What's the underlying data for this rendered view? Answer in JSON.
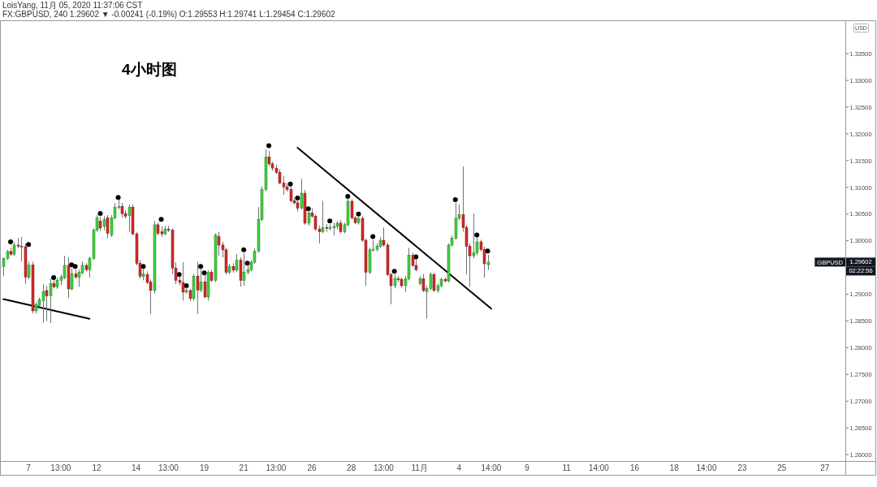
{
  "chart_data": {
    "type": "candlestick",
    "title": "4小时图",
    "ylabel": "USD",
    "annotations": [
      "LoisYang, 11月 05, 2020 11:37:06 CST",
      "FX:GBPUSD, 240 1.29602 ▼ -0.00241 (-0.19%) O:1.29553 H:1.29741 L:1.29454 C:1.29602",
      {
        "text": "1.29602",
        "y": 1.29602
      },
      "02:22:56",
      "GBPUSD"
    ],
    "categories": [
      null,
      null,
      null,
      null,
      null,
      null,
      null,
      "7",
      null,
      null,
      null,
      null,
      null,
      null,
      null,
      null,
      "13:00",
      null,
      null,
      null,
      null,
      null,
      null,
      null,
      null,
      null,
      "12",
      null,
      null,
      null,
      null,
      null,
      null,
      null,
      null,
      null,
      null,
      "14",
      null,
      null,
      null,
      null,
      null,
      null,
      null,
      null,
      "13:00",
      null,
      null,
      null,
      null,
      null,
      null,
      null,
      null,
      null,
      "19",
      null,
      null,
      null,
      null,
      null,
      null,
      null,
      null,
      null,
      null,
      "21",
      null,
      null,
      null,
      null,
      null,
      null,
      null,
      null,
      "13:00",
      null,
      null,
      null,
      null,
      null,
      null,
      null,
      null,
      null,
      "26",
      null,
      null,
      null,
      null,
      null,
      null,
      null,
      null,
      null,
      null,
      "28",
      null,
      null,
      null,
      null,
      null,
      null,
      null,
      null,
      "13:00",
      null,
      null,
      null,
      null,
      null,
      null,
      null,
      null,
      null,
      "11月",
      null,
      null,
      null,
      null,
      null,
      null,
      null,
      null,
      null,
      null,
      "4",
      null,
      null,
      null,
      null,
      null,
      null,
      null,
      null,
      "14:00",
      null,
      null,
      null,
      null,
      null,
      null,
      null,
      null,
      null,
      "9",
      null,
      null,
      null,
      null,
      null,
      null,
      null,
      null,
      null,
      null,
      "11",
      null,
      null,
      null,
      null,
      null,
      null,
      null,
      null,
      "14:00",
      null,
      null,
      null,
      null,
      null,
      null,
      null,
      null,
      null,
      "16",
      null,
      null,
      null,
      null,
      null,
      null,
      null,
      null,
      null,
      null,
      "18",
      null,
      null,
      null,
      null,
      null,
      null,
      null,
      null,
      "14:00",
      null,
      null,
      null,
      null,
      null,
      null,
      null,
      null,
      null,
      "23",
      null,
      null,
      null,
      null,
      null,
      null,
      null,
      null,
      null,
      null,
      "25",
      null,
      null,
      null,
      null,
      null,
      null,
      null,
      null,
      null,
      null,
      null,
      "27",
      null,
      null,
      null,
      null,
      null
    ],
    "ohlc": [
      [
        1.2952,
        1.2969,
        1.2934,
        1.2967
      ],
      [
        1.2967,
        1.2983,
        1.2964,
        1.298
      ],
      [
        1.298,
        1.2987,
        1.2972,
        1.2975
      ],
      [
        1.2975,
        1.2998,
        1.2972,
        1.2992
      ],
      [
        1.2992,
        1.3005,
        1.2986,
        1.299
      ],
      [
        1.299,
        1.3007,
        1.2961,
        1.2989
      ],
      [
        1.2989,
        1.2995,
        1.2919,
        1.2932
      ],
      [
        1.2932,
        1.2961,
        1.2928,
        1.2955
      ],
      [
        1.2955,
        1.2961,
        1.2864,
        1.2869
      ],
      [
        1.2869,
        1.2885,
        1.2864,
        1.2881
      ],
      [
        1.2879,
        1.2894,
        1.2876,
        1.289
      ],
      [
        1.2888,
        1.2919,
        1.2847,
        1.2905
      ],
      [
        1.2907,
        1.2916,
        1.285,
        1.2897
      ],
      [
        1.2897,
        1.2929,
        1.2846,
        1.292
      ],
      [
        1.292,
        1.2926,
        1.2911,
        1.2914
      ],
      [
        1.2914,
        1.2931,
        1.291,
        1.2926
      ],
      [
        1.2926,
        1.2937,
        1.2917,
        1.2932
      ],
      [
        1.2931,
        1.2972,
        1.2928,
        1.2954
      ],
      [
        1.2954,
        1.2969,
        1.2893,
        1.291
      ],
      [
        1.291,
        1.2949,
        1.2907,
        1.2938
      ],
      [
        1.2938,
        1.2946,
        1.2929,
        1.2932
      ],
      [
        1.2932,
        1.2946,
        1.2914,
        1.2941
      ],
      [
        1.294,
        1.2961,
        1.2937,
        1.2954
      ],
      [
        1.2954,
        1.2958,
        1.2943,
        1.2946
      ],
      [
        1.2946,
        1.297,
        1.2931,
        1.2967
      ],
      [
        1.2967,
        1.3023,
        1.2964,
        1.302
      ],
      [
        1.302,
        1.3048,
        1.3017,
        1.3043
      ],
      [
        1.3037,
        1.3045,
        1.3019,
        1.3024
      ],
      [
        1.3027,
        1.3046,
        1.302,
        1.304
      ],
      [
        1.3043,
        1.3048,
        1.3005,
        1.3014
      ],
      [
        1.3011,
        1.3048,
        1.3007,
        1.3043
      ],
      [
        1.3043,
        1.3071,
        1.304,
        1.3063
      ],
      [
        1.3063,
        1.3077,
        1.3059,
        1.3064
      ],
      [
        1.3064,
        1.3071,
        1.3043,
        1.3051
      ],
      [
        1.3051,
        1.3057,
        1.3042,
        1.3046
      ],
      [
        1.3047,
        1.3068,
        1.3017,
        1.3063
      ],
      [
        1.3063,
        1.3068,
        1.301,
        1.3013
      ],
      [
        1.3013,
        1.3016,
        1.2954,
        1.2958
      ],
      [
        1.2958,
        1.2964,
        1.2929,
        1.2934
      ],
      [
        1.2933,
        1.2948,
        1.2926,
        1.2938
      ],
      [
        1.2937,
        1.2943,
        1.2919,
        1.2922
      ],
      [
        1.2923,
        1.2928,
        1.2863,
        1.2907
      ],
      [
        1.2907,
        1.3037,
        1.2901,
        1.303
      ],
      [
        1.303,
        1.3034,
        1.301,
        1.3014
      ],
      [
        1.3017,
        1.3027,
        1.3007,
        1.3013
      ],
      [
        1.3013,
        1.3028,
        1.301,
        1.3022
      ],
      [
        1.3022,
        1.3028,
        1.3016,
        1.302
      ],
      [
        1.302,
        1.3023,
        1.2938,
        1.2949
      ],
      [
        1.2949,
        1.296,
        1.2919,
        1.2926
      ],
      [
        1.2926,
        1.2934,
        1.2917,
        1.2922
      ],
      [
        1.2922,
        1.296,
        1.2888,
        1.2904
      ],
      [
        1.2904,
        1.2913,
        1.2901,
        1.2907
      ],
      [
        1.2907,
        1.291,
        1.2887,
        1.2892
      ],
      [
        1.2892,
        1.2938,
        1.2888,
        1.2934
      ],
      [
        1.2934,
        1.2961,
        1.2863,
        1.2908
      ],
      [
        1.2908,
        1.2949,
        1.2904,
        1.2923
      ],
      [
        1.2923,
        1.2937,
        1.2892,
        1.2895
      ],
      [
        1.2895,
        1.2945,
        1.2888,
        1.2941
      ],
      [
        1.2941,
        1.2946,
        1.2923,
        1.2926
      ],
      [
        1.2926,
        1.3014,
        1.2923,
        1.3011
      ],
      [
        1.3008,
        1.3017,
        1.2972,
        1.2992
      ],
      [
        1.2992,
        1.2998,
        1.2969,
        1.2983
      ],
      [
        1.2983,
        1.2987,
        1.2937,
        1.2941
      ],
      [
        1.2941,
        1.2957,
        1.2937,
        1.2952
      ],
      [
        1.2952,
        1.2958,
        1.294,
        1.2945
      ],
      [
        1.2945,
        1.2975,
        1.2941,
        1.2964
      ],
      [
        1.2964,
        1.2969,
        1.2914,
        1.2926
      ],
      [
        1.2926,
        1.2977,
        1.2916,
        1.2941
      ],
      [
        1.2941,
        1.2955,
        1.2937,
        1.2946
      ],
      [
        1.2946,
        1.2964,
        1.2943,
        1.296
      ],
      [
        1.296,
        1.2986,
        1.2957,
        1.2981
      ],
      [
        1.2981,
        1.3063,
        1.2978,
        1.304
      ],
      [
        1.304,
        1.3102,
        1.3037,
        1.3096
      ],
      [
        1.3096,
        1.3171,
        1.3093,
        1.3157
      ],
      [
        1.3157,
        1.3168,
        1.3139,
        1.3144
      ],
      [
        1.3144,
        1.3148,
        1.3131,
        1.3136
      ],
      [
        1.3136,
        1.3142,
        1.3125,
        1.3128
      ],
      [
        1.3128,
        1.3134,
        1.3106,
        1.3108
      ],
      [
        1.3108,
        1.3121,
        1.3086,
        1.3101
      ],
      [
        1.3101,
        1.3108,
        1.3092,
        1.3096
      ],
      [
        1.3096,
        1.3101,
        1.3072,
        1.3075
      ],
      [
        1.3075,
        1.3081,
        1.3068,
        1.3071
      ],
      [
        1.3071,
        1.3077,
        1.3055,
        1.3061
      ],
      [
        1.3061,
        1.3116,
        1.3059,
        1.3089
      ],
      [
        1.3089,
        1.3095,
        1.303,
        1.3033
      ],
      [
        1.3033,
        1.3057,
        1.3028,
        1.3052
      ],
      [
        1.3052,
        1.3061,
        1.3043,
        1.3046
      ],
      [
        1.3046,
        1.3049,
        1.3019,
        1.3022
      ],
      [
        1.3022,
        1.3028,
        1.2995,
        1.3017
      ],
      [
        1.3017,
        1.3075,
        1.3014,
        1.3025
      ],
      [
        1.3025,
        1.3031,
        1.3017,
        1.3024
      ],
      [
        1.3024,
        1.3031,
        1.3019,
        1.3025
      ],
      [
        1.3024,
        1.3034,
        1.301,
        1.3027
      ],
      [
        1.3027,
        1.3037,
        1.3022,
        1.3033
      ],
      [
        1.3033,
        1.3039,
        1.3014,
        1.3017
      ],
      [
        1.3017,
        1.3034,
        1.3014,
        1.303
      ],
      [
        1.303,
        1.3078,
        1.3027,
        1.3074
      ],
      [
        1.3074,
        1.3078,
        1.304,
        1.3043
      ],
      [
        1.3043,
        1.3046,
        1.3031,
        1.3034
      ],
      [
        1.3034,
        1.3046,
        1.303,
        1.3042
      ],
      [
        1.3042,
        1.3046,
        1.2998,
        1.3001
      ],
      [
        1.3001,
        1.3004,
        1.2916,
        1.2941
      ],
      [
        1.2941,
        1.2987,
        1.2938,
        1.2983
      ],
      [
        1.2983,
        1.3002,
        1.298,
        1.2984
      ],
      [
        1.2984,
        1.2995,
        1.298,
        1.299
      ],
      [
        1.299,
        1.3007,
        1.2987,
        1.3001
      ],
      [
        1.3001,
        1.3025,
        1.2989,
        1.2992
      ],
      [
        1.2992,
        1.2996,
        1.2934,
        1.2937
      ],
      [
        1.2937,
        1.294,
        1.2881,
        1.2916
      ],
      [
        1.2916,
        1.2937,
        1.2911,
        1.2929
      ],
      [
        1.2929,
        1.2934,
        1.2923,
        1.2928
      ],
      [
        1.2928,
        1.2931,
        1.2913,
        1.2916
      ],
      [
        1.2916,
        1.2934,
        1.2904,
        1.2929
      ],
      [
        1.2929,
        1.2987,
        1.2926,
        1.2973
      ],
      [
        1.2973,
        1.2978,
        1.2951,
        1.2954
      ],
      [
        1.2954,
        1.2966,
        1.2943,
        1.2946
      ],
      [
        1.292,
        1.2934,
        1.2917,
        1.2929
      ],
      [
        1.2929,
        1.2938,
        1.2904,
        1.2907
      ],
      [
        1.2905,
        1.2916,
        1.2855,
        1.2911
      ],
      [
        1.2911,
        1.2941,
        1.2908,
        1.2937
      ],
      [
        1.2937,
        1.294,
        1.2904,
        1.2907
      ],
      [
        1.2907,
        1.292,
        1.2902,
        1.2916
      ],
      [
        1.2916,
        1.2931,
        1.2913,
        1.2928
      ],
      [
        1.2928,
        1.2931,
        1.2922,
        1.2925
      ],
      [
        1.2925,
        1.2995,
        1.2922,
        1.2992
      ],
      [
        1.2992,
        1.301,
        1.2989,
        1.3005
      ],
      [
        1.3005,
        1.3071,
        1.3002,
        1.3042
      ],
      [
        1.3042,
        1.3068,
        1.3039,
        1.3049
      ],
      [
        1.3049,
        1.3139,
        1.3017,
        1.3025
      ],
      [
        1.3025,
        1.303,
        1.2937,
        1.299
      ],
      [
        1.299,
        1.2995,
        1.2914,
        1.2972
      ],
      [
        1.2972,
        1.3051,
        1.2967,
        1.2978
      ],
      [
        1.2978,
        1.3005,
        1.2973,
        1.2998
      ],
      [
        1.2998,
        1.3002,
        1.298,
        1.2984
      ],
      [
        1.2984,
        1.2989,
        1.2931,
        1.2957
      ],
      [
        1.29553,
        1.29741,
        1.29454,
        1.29602
      ],
      null,
      null,
      null,
      null,
      null,
      null,
      null,
      null,
      null,
      null,
      null,
      null,
      null,
      null,
      null,
      null,
      null,
      null,
      null,
      null,
      null,
      null,
      null,
      null,
      null,
      null,
      null,
      null,
      null,
      null,
      null,
      null,
      null,
      null,
      null,
      null,
      null,
      null,
      null,
      null,
      null,
      null,
      null,
      null,
      null,
      null,
      null,
      null,
      null,
      null,
      null,
      null,
      null,
      null,
      null,
      null,
      null,
      null,
      null,
      null,
      null,
      null,
      null,
      null,
      null,
      null,
      null,
      null,
      null,
      null,
      null,
      null,
      null,
      null,
      null,
      null,
      null,
      null,
      null,
      null,
      null,
      null,
      null,
      null,
      null,
      null,
      null,
      null,
      null,
      null,
      null,
      null,
      null,
      null,
      null,
      null,
      null,
      null,
      null
    ],
    "series": [
      {
        "type": "scatter",
        "color": "#000000",
        "marker": "circle",
        "values": [
          null,
          null,
          1.2998,
          null,
          null,
          null,
          null,
          1.2993,
          null,
          null,
          null,
          null,
          null,
          null,
          1.2931,
          null,
          null,
          null,
          null,
          1.2955,
          1.2952,
          null,
          null,
          null,
          null,
          null,
          null,
          1.3051,
          null,
          null,
          null,
          null,
          1.3081,
          null,
          null,
          null,
          null,
          null,
          null,
          1.2952,
          null,
          null,
          null,
          null,
          1.304,
          null,
          null,
          null,
          null,
          1.2937,
          null,
          1.2916,
          null,
          null,
          null,
          1.2952,
          1.294,
          null,
          null,
          null,
          null,
          null,
          null,
          null,
          null,
          null,
          null,
          1.2983,
          1.2958,
          null,
          null,
          null,
          null,
          null,
          1.3178,
          null,
          null,
          null,
          null,
          null,
          1.3106,
          null,
          1.308,
          null,
          null,
          1.306,
          null,
          null,
          null,
          null,
          null,
          1.3037,
          null,
          null,
          null,
          null,
          1.3083,
          null,
          null,
          1.305,
          null,
          null,
          null,
          1.3008,
          null,
          null,
          null,
          null,
          null,
          1.2943,
          null,
          null,
          null,
          null,
          null,
          1.297,
          null,
          null,
          null,
          null,
          null,
          null,
          null,
          null,
          null,
          null,
          1.3077,
          null,
          null,
          null,
          null,
          null,
          1.3011,
          null,
          null,
          1.2981,
          null,
          null,
          null,
          null,
          null,
          null,
          null,
          null,
          null,
          null,
          null,
          null,
          null,
          null,
          null,
          null,
          null,
          null,
          null,
          null,
          null,
          null,
          null,
          null,
          null,
          null,
          null,
          null,
          null,
          null,
          null,
          null,
          null,
          null,
          null,
          null,
          null,
          null,
          null,
          null,
          null,
          null,
          null,
          null,
          null,
          null,
          null,
          null,
          null,
          null,
          null,
          null,
          null,
          null,
          null,
          null,
          null,
          null,
          null,
          null,
          null,
          null,
          null,
          null,
          null,
          null,
          null,
          null,
          null,
          null,
          null,
          null,
          null,
          null,
          null,
          null,
          null,
          null,
          null,
          null,
          null,
          null,
          null,
          null,
          null,
          null,
          null,
          null,
          null,
          null,
          null,
          null,
          null,
          null,
          null,
          null,
          null,
          null,
          null
        ]
      },
      {
        "type": "line",
        "color": "#000000",
        "values": [
          1.2891,
          null,
          null,
          null,
          null,
          null,
          null,
          null,
          null,
          null,
          null,
          null,
          null,
          null,
          null,
          null,
          null,
          null,
          null,
          null,
          null,
          null,
          null,
          null,
          1.2854,
          null,
          null,
          null,
          null,
          null,
          null,
          null,
          null,
          null,
          null,
          null,
          null,
          null,
          null,
          null,
          null,
          null,
          null,
          null,
          null,
          null,
          null,
          null,
          null,
          null,
          null,
          null,
          null,
          null,
          null,
          null,
          null,
          null,
          null,
          null,
          null,
          null,
          null,
          null,
          null,
          null,
          null,
          null,
          null,
          null,
          null,
          null,
          null,
          null,
          null,
          null,
          null,
          null,
          null,
          null,
          null,
          null,
          null,
          null,
          null,
          null,
          null,
          null,
          null,
          null,
          null,
          null,
          null,
          null,
          null,
          null,
          null,
          null,
          null,
          null,
          null,
          null,
          null,
          null,
          null,
          null,
          null,
          null,
          null,
          null,
          null,
          null,
          null,
          null,
          null,
          null,
          null,
          null,
          null,
          null,
          null,
          null,
          null,
          null,
          null,
          null,
          null,
          null,
          null,
          null,
          null,
          null,
          null,
          null,
          null,
          null,
          null,
          null,
          null,
          null,
          null,
          null,
          null,
          null,
          null,
          null,
          null,
          null,
          null,
          null,
          null,
          null,
          null,
          null,
          null,
          null,
          null,
          null,
          null,
          null,
          null,
          null,
          null,
          null,
          null,
          null,
          null,
          null,
          null,
          null,
          null,
          null,
          null,
          null,
          null,
          null,
          null,
          null,
          null,
          null,
          null,
          null,
          null,
          null,
          null,
          null,
          null,
          null,
          null,
          null,
          null,
          null,
          null,
          null,
          null,
          null,
          null,
          null,
          null,
          null,
          null,
          null,
          null,
          null,
          null,
          null,
          null,
          null,
          null,
          null,
          null,
          null,
          null,
          null,
          null,
          null,
          null,
          null,
          null,
          null,
          null,
          null,
          null,
          null,
          null,
          null,
          null,
          null,
          null,
          null,
          null,
          null,
          null,
          null,
          null
        ]
      },
      {
        "type": "line",
        "color": "#000000",
        "values": [
          null,
          null,
          null,
          null,
          null,
          null,
          null,
          null,
          null,
          null,
          null,
          null,
          null,
          null,
          null,
          null,
          null,
          null,
          null,
          null,
          null,
          null,
          null,
          null,
          null,
          null,
          null,
          null,
          null,
          null,
          null,
          null,
          null,
          null,
          null,
          null,
          null,
          null,
          null,
          null,
          null,
          null,
          null,
          null,
          null,
          null,
          null,
          null,
          null,
          null,
          null,
          null,
          null,
          null,
          null,
          null,
          null,
          null,
          null,
          null,
          null,
          null,
          null,
          null,
          null,
          null,
          null,
          null,
          null,
          null,
          null,
          null,
          null,
          null,
          null,
          null,
          null,
          null,
          null,
          null,
          null,
          null,
          1.3174,
          null,
          null,
          null,
          null,
          null,
          null,
          null,
          null,
          null,
          null,
          null,
          null,
          null,
          null,
          null,
          null,
          null,
          null,
          null,
          null,
          null,
          null,
          null,
          null,
          null,
          null,
          null,
          null,
          null,
          null,
          null,
          null,
          null,
          null,
          null,
          null,
          null,
          null,
          null,
          null,
          null,
          null,
          null,
          null,
          null,
          null,
          null,
          null,
          null,
          null,
          null,
          null,
          null,
          1.2873,
          null,
          null,
          null,
          null,
          null,
          null,
          null,
          null,
          null,
          null,
          null,
          null,
          null,
          null,
          null,
          null,
          null,
          null,
          null,
          null,
          null,
          null,
          null,
          null,
          null,
          null,
          null,
          null,
          null,
          null,
          null,
          null,
          null,
          null,
          null,
          null,
          null,
          null,
          null,
          null,
          null,
          null,
          null,
          null,
          null,
          null,
          null,
          null,
          null,
          null,
          null,
          null,
          null,
          null,
          null,
          null,
          null,
          null,
          null,
          null,
          null,
          null,
          null,
          null,
          null,
          null,
          null,
          null,
          null,
          null,
          null,
          null,
          null,
          null,
          null,
          null,
          null,
          null,
          null,
          null,
          null,
          null,
          null,
          null,
          null,
          null,
          null,
          null,
          null,
          null,
          null,
          null,
          null,
          null,
          null,
          null,
          null,
          null
        ]
      }
    ],
    "ylim": [
      1.2588,
      1.3411
    ],
    "yticks": [
      {
        "value": 1.26,
        "label": "1.26000"
      },
      {
        "value": 1.265,
        "label": "1.26500"
      },
      {
        "value": 1.27,
        "label": "1.27000"
      },
      {
        "value": 1.275,
        "label": "1.27500"
      },
      {
        "value": 1.28,
        "label": "1.28000"
      },
      {
        "value": 1.285,
        "label": "1.28500"
      },
      {
        "value": 1.29,
        "label": "1.29000"
      },
      {
        "value": 1.3,
        "label": "1.30000"
      },
      {
        "value": 1.305,
        "label": "1.30500"
      },
      {
        "value": 1.31,
        "label": "1.31000"
      },
      {
        "value": 1.315,
        "label": "1.31500"
      },
      {
        "value": 1.32,
        "label": "1.32000"
      },
      {
        "value": 1.325,
        "label": "1.32500"
      },
      {
        "value": 1.33,
        "label": "1.33000"
      },
      {
        "value": 1.335,
        "label": "1.33500"
      }
    ]
  }
}
